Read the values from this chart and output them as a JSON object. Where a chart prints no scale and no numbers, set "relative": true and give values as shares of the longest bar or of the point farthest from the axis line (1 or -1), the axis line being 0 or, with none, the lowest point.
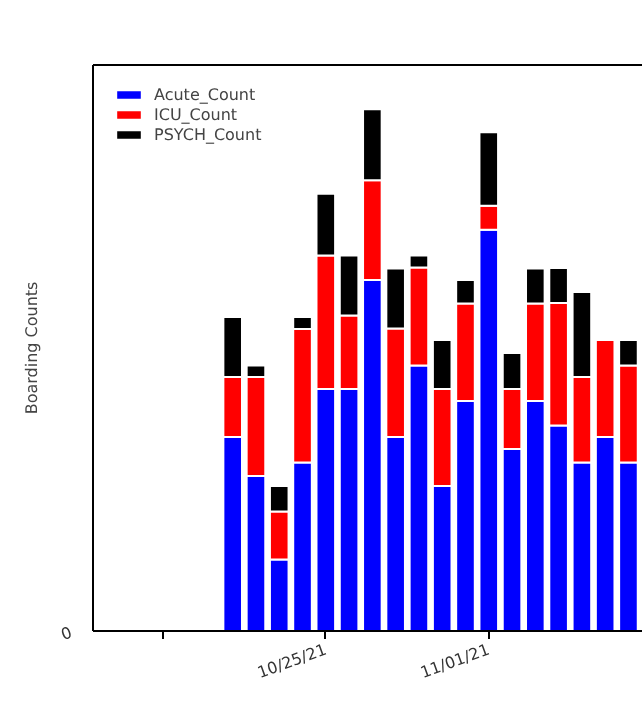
{
  "chart_data": {
    "type": "bar",
    "stacked": true,
    "relative": true,
    "ylabel": "Boarding Counts",
    "x": [
      "2021-10-21",
      "2021-10-22",
      "2021-10-23",
      "2021-10-24",
      "2021-10-25",
      "2021-10-26",
      "2021-10-27",
      "2021-10-28",
      "2021-10-29",
      "2021-10-30",
      "2021-10-31",
      "2021-11-01",
      "2021-11-02",
      "2021-11-03",
      "2021-11-04",
      "2021-11-05",
      "2021-11-06",
      "2021-11-07"
    ],
    "xlim": [
      "2021-10-15",
      "2021-11-07T15:00"
    ],
    "xticks": [
      {
        "value": "2021-10-18",
        "label": null
      },
      {
        "value": "2021-10-25",
        "label": "10/25/21"
      },
      {
        "value": "2021-11-01",
        "label": "11/01/21"
      }
    ],
    "series": [
      {
        "name": "Acute_Count",
        "color": "#0000ff",
        "values": [
          0.372,
          0.297,
          0.137,
          0.323,
          0.464,
          0.464,
          0.673,
          0.372,
          0.509,
          0.278,
          0.441,
          0.769,
          0.349,
          0.441,
          0.394,
          0.323,
          0.372,
          0.323
        ]
      },
      {
        "name": "ICU_Count",
        "color": "#ff0000",
        "values": [
          0.115,
          0.19,
          0.092,
          0.256,
          0.256,
          0.141,
          0.191,
          0.208,
          0.188,
          0.186,
          0.187,
          0.046,
          0.115,
          0.187,
          0.235,
          0.164,
          0.186,
          0.186
        ]
      },
      {
        "name": "PSYCH_Count",
        "color": "#000000",
        "values": [
          0.115,
          0.022,
          0.049,
          0.023,
          0.118,
          0.115,
          0.136,
          0.115,
          0.023,
          0.094,
          0.045,
          0.141,
          0.069,
          0.067,
          0.067,
          0.163,
          null,
          0.049
        ]
      }
    ],
    "annotations": [
      "0"
    ],
    "legend": "top left"
  }
}
